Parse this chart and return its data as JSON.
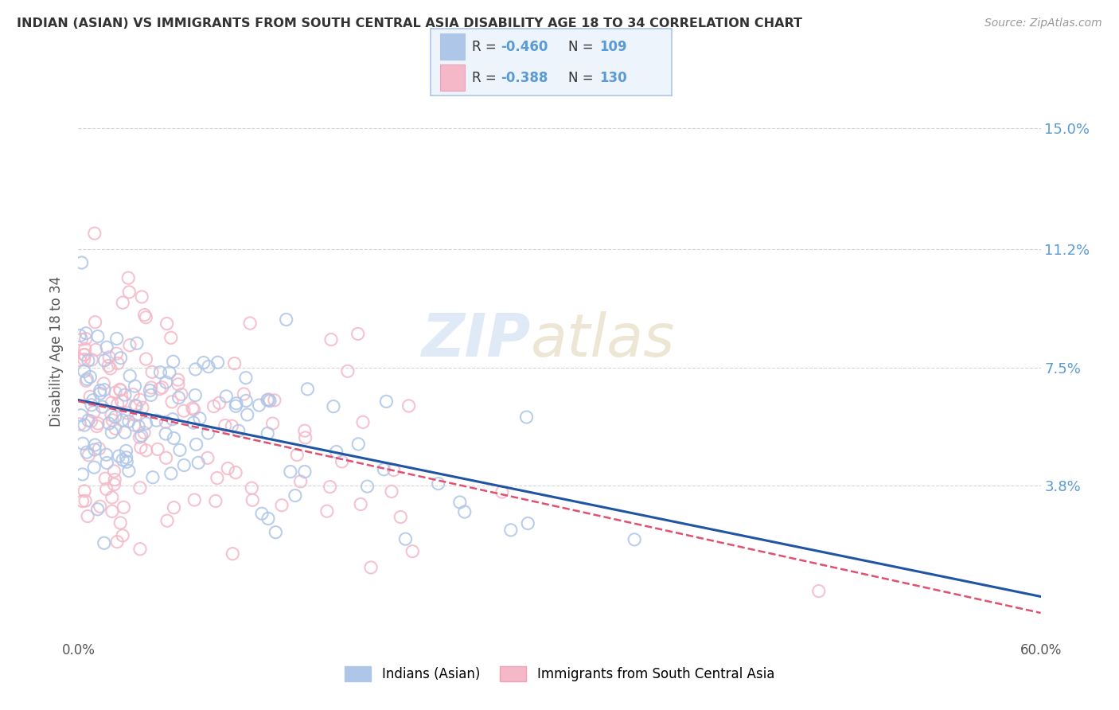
{
  "title": "INDIAN (ASIAN) VS IMMIGRANTS FROM SOUTH CENTRAL ASIA DISABILITY AGE 18 TO 34 CORRELATION CHART",
  "source": "Source: ZipAtlas.com",
  "ylabel": "Disability Age 18 to 34",
  "xlim": [
    0.0,
    0.6
  ],
  "ylim": [
    -0.01,
    0.17
  ],
  "yticks": [
    0.038,
    0.075,
    0.112,
    0.15
  ],
  "ytick_labels": [
    "3.8%",
    "7.5%",
    "11.2%",
    "15.0%"
  ],
  "xticks": [
    0.0,
    0.1,
    0.2,
    0.3,
    0.4,
    0.5,
    0.6
  ],
  "xtick_labels": [
    "0.0%",
    "",
    "",
    "",
    "",
    "",
    "60.0%"
  ],
  "series1_name": "Indians (Asian)",
  "series1_color": "#aec6e8",
  "series1_line_color": "#2055a4",
  "series1_R": -0.46,
  "series1_N": 109,
  "series2_name": "Immigrants from South Central Asia",
  "series2_color": "#f4b8c8",
  "series2_line_color": "#e05070",
  "series2_R": -0.388,
  "series2_N": 130,
  "background_color": "#ffffff",
  "grid_color": "#cccccc",
  "title_color": "#333333",
  "axis_label_color": "#5b9bd5",
  "legend_box_color": "#eef4fc",
  "legend_border_color": "#aec6e8",
  "watermark_zip_color": "#c8d8f0",
  "watermark_atlas_color": "#d0c8b0",
  "seed1": 42,
  "seed2": 77
}
